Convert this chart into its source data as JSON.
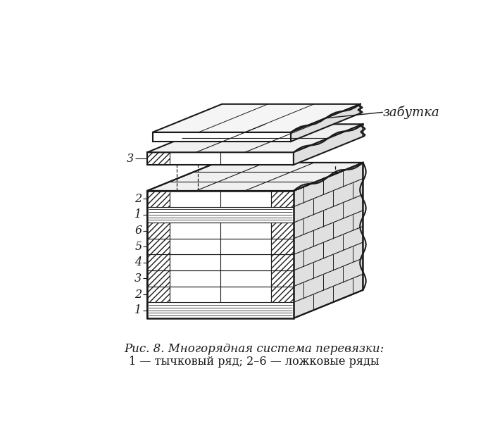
{
  "title": "Рис. 8. Многорядная система перевязки:",
  "subtitle": "1 — тычковый ряд; 2–6 — ложковые ряды",
  "label_zabytka": "забутка",
  "bg_color": "#ffffff",
  "line_color": "#1a1a1a",
  "front_face_color": "#ffffff",
  "side_face_color": "#e8e8e8",
  "top_face_color": "#f0f0f0",
  "hatch_diag": "////",
  "hatch_horiz": "-----"
}
